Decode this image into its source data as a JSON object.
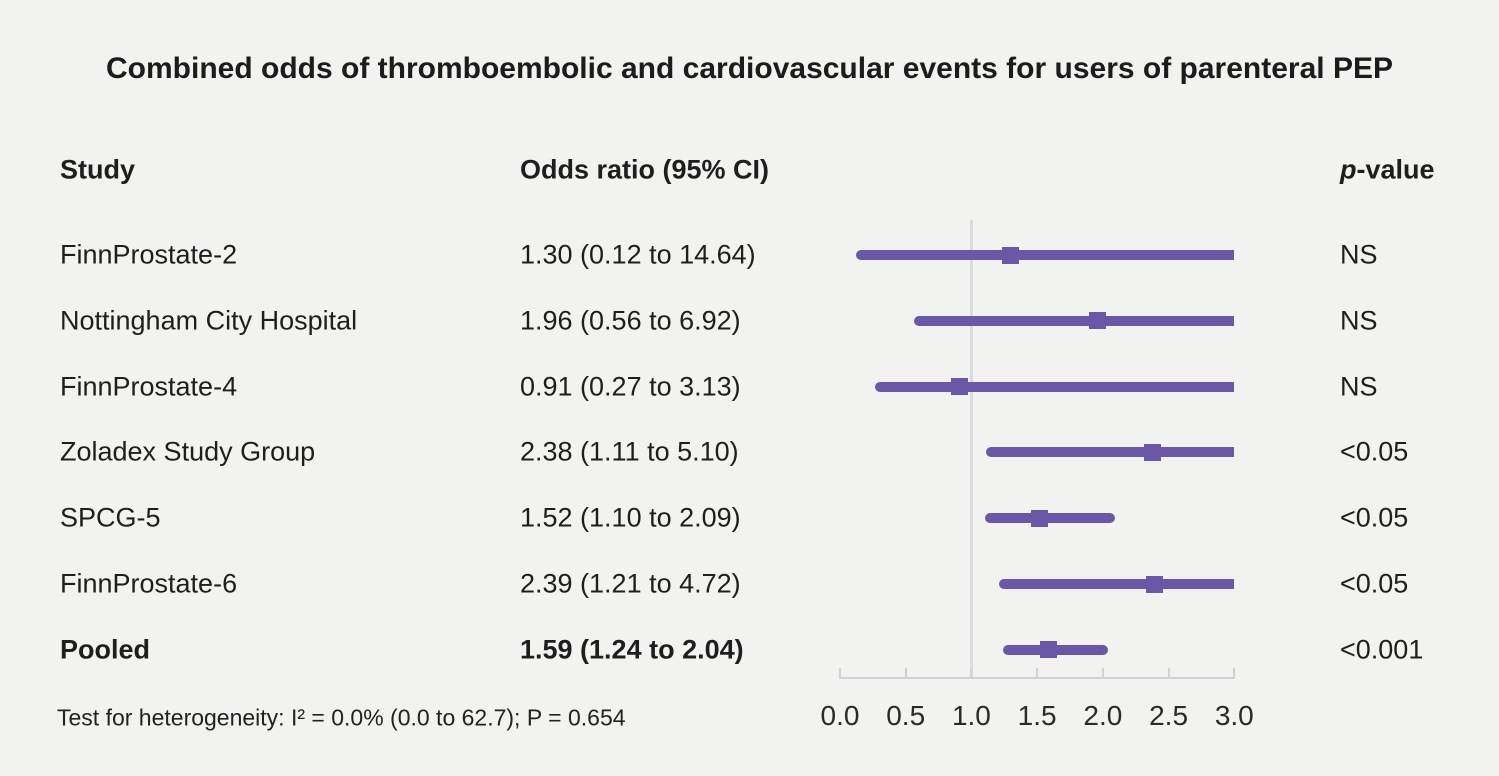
{
  "title": "Combined odds of thromboembolic and cardiovascular events for users of parenteral PEP",
  "columns": {
    "study": "Study",
    "odds_ratio": "Odds ratio (95% CI)",
    "p_prefix": "p",
    "p_suffix": "-value"
  },
  "footnote": "Test for heterogeneity: I² = 0.0% (0.0 to 62.7); P = 0.654",
  "colors": {
    "background": "#f2f2f0",
    "text": "#1e1e1e",
    "ci_line": "#6a58a6",
    "marker": "#6a58a6",
    "reference_line": "#d9dde2",
    "axis_line": "#cdd2d6"
  },
  "chart_data": {
    "type": "forest",
    "title": "Combined odds of thromboembolic and cardiovascular events for users of parenteral PEP",
    "xlabel": "",
    "x_axis": {
      "tick_labels": [
        "0.0",
        "0.5",
        "1.0",
        "1.5",
        "2.0",
        "2.5",
        "3.0"
      ],
      "tick_values": [
        0.0,
        0.5,
        1.0,
        1.5,
        2.0,
        2.5,
        3.0
      ],
      "xlim": [
        0.0,
        3.0
      ],
      "reference_value": 1.0
    },
    "legend": null,
    "rows": [
      {
        "study": "FinnProstate-2",
        "or_text": "1.30 (0.12 to 14.64)",
        "estimate": 1.3,
        "ci_low": 0.12,
        "ci_high": 14.64,
        "p_value": "NS",
        "bold": false
      },
      {
        "study": "Nottingham City Hospital",
        "or_text": "1.96 (0.56 to 6.92)",
        "estimate": 1.96,
        "ci_low": 0.56,
        "ci_high": 6.92,
        "p_value": "NS",
        "bold": false
      },
      {
        "study": "FinnProstate-4",
        "or_text": "0.91 (0.27 to 3.13)",
        "estimate": 0.91,
        "ci_low": 0.27,
        "ci_high": 3.13,
        "p_value": "NS",
        "bold": false
      },
      {
        "study": "Zoladex Study Group",
        "or_text": "2.38 (1.11 to 5.10)",
        "estimate": 2.38,
        "ci_low": 1.11,
        "ci_high": 5.1,
        "p_value": "<0.05",
        "bold": false
      },
      {
        "study": "SPCG-5",
        "or_text": "1.52 (1.10 to 2.09)",
        "estimate": 1.52,
        "ci_low": 1.1,
        "ci_high": 2.09,
        "p_value": "<0.05",
        "bold": false
      },
      {
        "study": "FinnProstate-6",
        "or_text": "2.39 (1.21 to 4.72)",
        "estimate": 2.39,
        "ci_low": 1.21,
        "ci_high": 4.72,
        "p_value": "<0.05",
        "bold": false
      },
      {
        "study": "Pooled",
        "or_text": "1.59 (1.24 to 2.04)",
        "estimate": 1.59,
        "ci_low": 1.24,
        "ci_high": 2.04,
        "p_value": "<0.001",
        "bold": true
      }
    ],
    "heterogeneity_note": "Test for heterogeneity: I² = 0.0% (0.0 to 62.7); P = 0.654"
  }
}
